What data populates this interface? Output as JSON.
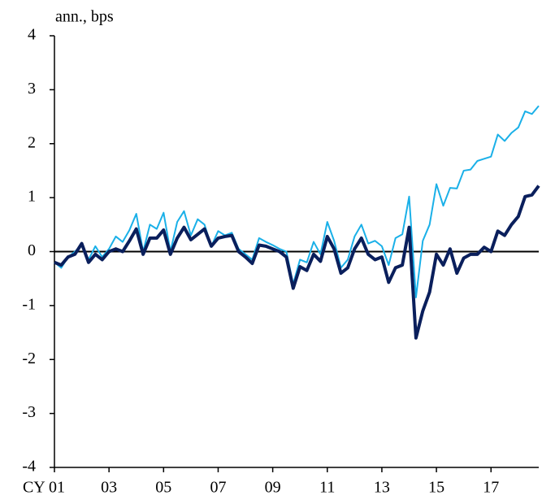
{
  "chart_data": {
    "type": "line",
    "y_label": "ann., bps",
    "x": [
      2001,
      2001.25,
      2001.5,
      2001.75,
      2002,
      2002.25,
      2002.5,
      2002.75,
      2003,
      2003.25,
      2003.5,
      2003.75,
      2004,
      2004.25,
      2004.5,
      2004.75,
      2005,
      2005.25,
      2005.5,
      2005.75,
      2006,
      2006.25,
      2006.5,
      2006.75,
      2007,
      2007.25,
      2007.5,
      2007.75,
      2008,
      2008.25,
      2008.5,
      2008.75,
      2009,
      2009.25,
      2009.5,
      2009.75,
      2010,
      2010.25,
      2010.5,
      2010.75,
      2011,
      2011.25,
      2011.5,
      2011.75,
      2012,
      2012.25,
      2012.5,
      2012.75,
      2013,
      2013.25,
      2013.5,
      2013.75,
      2014,
      2014.25,
      2014.5,
      2014.75,
      2015,
      2015.25,
      2015.5,
      2015.75,
      2016,
      2016.25,
      2016.5,
      2016.75,
      2017,
      2017.25,
      2017.5,
      2017.75,
      2018,
      2018.25,
      2018.5,
      2018.75
    ],
    "series": [
      {
        "color": "#1ab0e8",
        "values": [
          -0.2,
          -0.3,
          -0.1,
          0.0,
          0.12,
          -0.15,
          0.1,
          -0.1,
          0.05,
          0.28,
          0.18,
          0.4,
          0.7,
          0.0,
          0.5,
          0.42,
          0.72,
          0.0,
          0.55,
          0.75,
          0.3,
          0.6,
          0.5,
          0.1,
          0.38,
          0.3,
          0.35,
          0.05,
          -0.05,
          -0.15,
          0.25,
          0.18,
          0.12,
          0.05,
          0.0,
          -0.6,
          -0.15,
          -0.2,
          0.18,
          -0.05,
          0.55,
          0.2,
          -0.3,
          -0.15,
          0.28,
          0.5,
          0.15,
          0.2,
          0.1,
          -0.25,
          0.25,
          0.32,
          1.02,
          -0.85,
          0.2,
          0.5,
          1.25,
          0.85,
          1.18,
          1.17,
          1.5,
          1.52,
          1.68,
          1.72,
          1.76,
          2.17,
          2.05,
          2.2,
          2.3,
          2.6,
          2.55,
          2.7
        ]
      },
      {
        "color": "#0a1f5c",
        "values": [
          -0.2,
          -0.25,
          -0.1,
          -0.05,
          0.15,
          -0.2,
          -0.05,
          -0.15,
          0.0,
          0.05,
          0.0,
          0.2,
          0.42,
          -0.05,
          0.25,
          0.25,
          0.4,
          -0.05,
          0.25,
          0.45,
          0.22,
          0.32,
          0.42,
          0.1,
          0.25,
          0.28,
          0.3,
          0.0,
          -0.1,
          -0.22,
          0.12,
          0.1,
          0.05,
          0.0,
          -0.1,
          -0.68,
          -0.28,
          -0.35,
          -0.05,
          -0.18,
          0.28,
          0.05,
          -0.4,
          -0.3,
          0.05,
          0.25,
          -0.05,
          -0.15,
          -0.1,
          -0.57,
          -0.3,
          -0.25,
          0.45,
          -1.6,
          -1.1,
          -0.75,
          -0.05,
          -0.25,
          0.05,
          -0.4,
          -0.12,
          -0.05,
          -0.05,
          0.08,
          0.0,
          0.38,
          0.3,
          0.5,
          0.65,
          1.02,
          1.05,
          1.22
        ]
      }
    ],
    "xlim": [
      2001,
      2018.75
    ],
    "xticks": [
      {
        "value": 2001,
        "label": "CY 01"
      },
      {
        "value": 2003,
        "label": "03"
      },
      {
        "value": 2005,
        "label": "05"
      },
      {
        "value": 2007,
        "label": "07"
      },
      {
        "value": 2009,
        "label": "09"
      },
      {
        "value": 2011,
        "label": "11"
      },
      {
        "value": 2013,
        "label": "13"
      },
      {
        "value": 2015,
        "label": "15"
      },
      {
        "value": 2017,
        "label": "17"
      }
    ],
    "ylim": [
      -4,
      4
    ],
    "yticks": [
      -4,
      -3,
      -2,
      -1,
      0,
      1,
      2,
      3,
      4
    ]
  }
}
